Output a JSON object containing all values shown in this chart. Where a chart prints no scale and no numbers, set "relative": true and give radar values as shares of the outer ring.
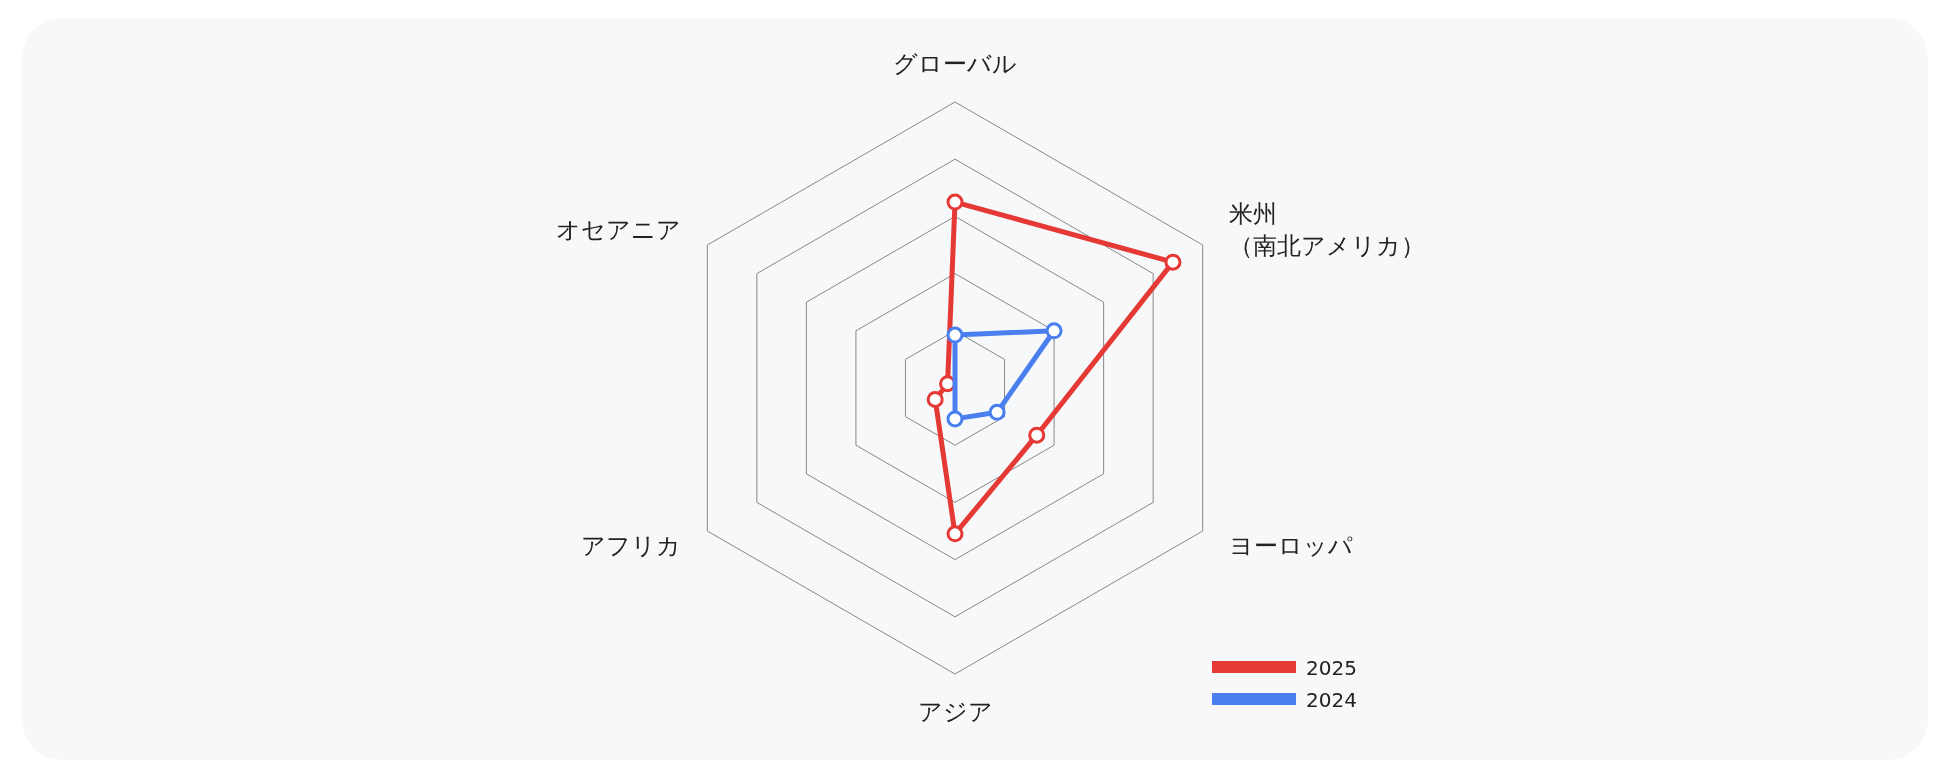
{
  "chart_data": {
    "type": "radar",
    "relative": true,
    "grid": true,
    "marker": "circle",
    "legend": "bottom right",
    "categories": [
      "グローバル",
      "米州（南北アメリカ）",
      "ヨーロッパ",
      "アジア",
      "アフリカ",
      "オセアニア"
    ],
    "series": [
      {
        "name": "2025",
        "color": "#e53935",
        "values": [
          0.65,
          0.88,
          0.33,
          0.51,
          0.08,
          0.03
        ]
      },
      {
        "name": "2024",
        "color": "#4a7ff0",
        "values": [
          0.185,
          0.4,
          0.17,
          0.108,
          null,
          null
        ]
      }
    ]
  }
}
